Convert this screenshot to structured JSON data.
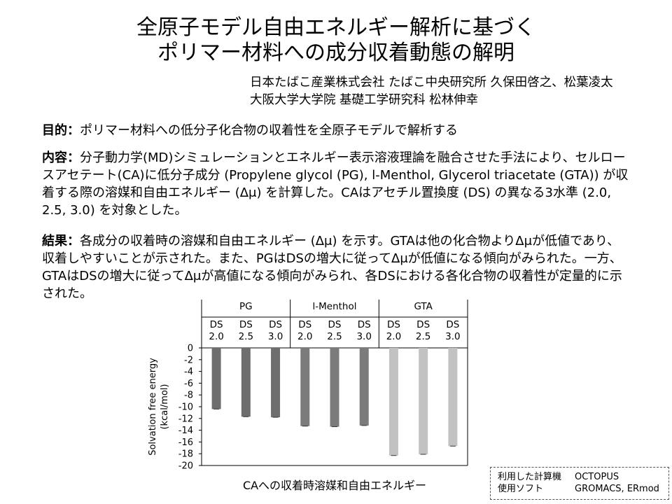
{
  "title": {
    "line1": "全原子モデル自由エネルギー解析に基づく",
    "line2": "ポリマー材料への成分収着動態の解明"
  },
  "affiliations": [
    "日本たばこ産業株式会社 たばこ中央研究所 久保田啓之、松葉凌太",
    "大阪大学大学院 基礎工学研究科 松林伸幸"
  ],
  "purpose": {
    "label": "目的：",
    "text": "ポリマー材料への低分子化合物の収着性を全原子モデルで解析する"
  },
  "content": {
    "label": "内容：",
    "text": "分子動力学(MD)シミュレーションとエネルギー表示溶液理論を融合させた手法により、セルロースアセテート(CA)に低分子成分 (Propylene glycol (PG), l-Menthol, Glycerol triacetate (GTA)) が収着する際の溶媒和自由エネルギー (Δμ) を計算した。CAはアセチル置換度 (DS) の異なる3水準 (2.0, 2.5, 3.0) を対象とした。"
  },
  "result": {
    "label": "結果：",
    "text": "各成分の収着時の溶媒和自由エネルギー (Δμ) を示す。GTAは他の化合物よりΔμが低値であり、収着しやすいことが示された。また、PGはDSの増大に従ってΔμが低値になる傾向がみられた。一方、GTAはDSの増大に従ってΔμが高値になる傾向がみられ、各DSにおける各化合物の収着性が定量的に示された。"
  },
  "chart_data": {
    "type": "bar",
    "xlabel": "CAへの収着時溶媒和自由エネルギー",
    "ylabel_lines": [
      "Solvation free energy",
      "(kcal/mol)"
    ],
    "ylim": [
      -20,
      0
    ],
    "yticks": [
      0,
      -2,
      -4,
      -6,
      -8,
      -10,
      -12,
      -14,
      -16,
      -18,
      -20
    ],
    "groups": [
      "PG",
      "l-Menthol",
      "GTA"
    ],
    "ds_prefix": "DS",
    "ds_levels": [
      "2.0",
      "2.5",
      "3.0"
    ],
    "series": [
      {
        "group": "PG",
        "values": [
          -10.4,
          -11.7,
          -11.8
        ],
        "color": "#6e6e6e"
      },
      {
        "group": "l-Menthol",
        "values": [
          -13.3,
          -13.4,
          -13.2
        ],
        "color": "#7b7b7b"
      },
      {
        "group": "GTA",
        "values": [
          -18.3,
          -18.1,
          -16.7
        ],
        "color": "#c2c2c2"
      }
    ],
    "grid": false,
    "legend": "none"
  },
  "info": {
    "rows": [
      {
        "key": "利用した計算機",
        "value": "OCTOPUS"
      },
      {
        "key": "使用ソフト",
        "value": "GROMACS, ERmod"
      }
    ]
  }
}
